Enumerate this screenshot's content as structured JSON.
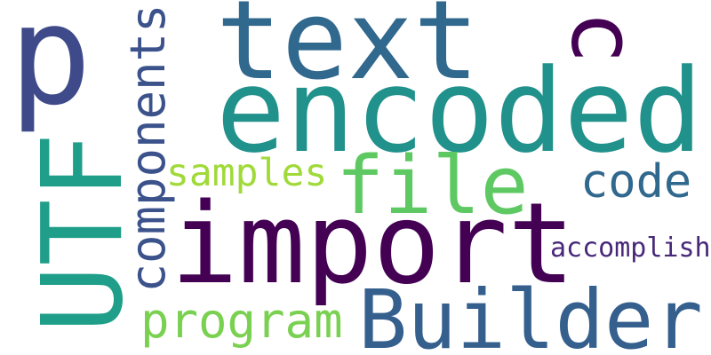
{
  "words": [
    {
      "text": "p",
      "color": "#3e4a89"
    },
    {
      "text": "text",
      "color": "#31688e"
    },
    {
      "text": "c",
      "color": "#440154"
    },
    {
      "text": "encoded",
      "color": "#21918c"
    },
    {
      "text": "components",
      "color": "#3b528b"
    },
    {
      "text": "UTF",
      "color": "#1f9e89"
    },
    {
      "text": "samples",
      "color": "#a0da39"
    },
    {
      "text": "file",
      "color": "#5ec962"
    },
    {
      "text": "code",
      "color": "#31688e"
    },
    {
      "text": "import",
      "color": "#440154"
    },
    {
      "text": "accomplish",
      "color": "#482878"
    },
    {
      "text": "program",
      "color": "#7ad151"
    },
    {
      "text": "Builder",
      "color": "#355f8d"
    }
  ]
}
